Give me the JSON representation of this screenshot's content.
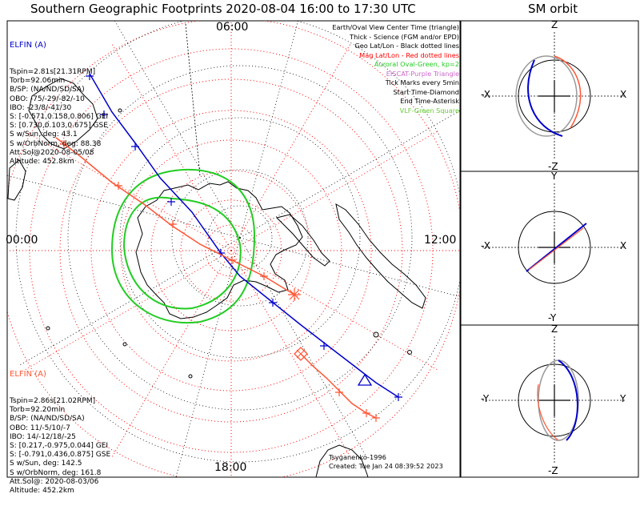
{
  "title": "Southern Geographic Footprints 2020-08-04 16:00 to 17:30 UTC",
  "orbit_title": "SM orbit",
  "map": {
    "mlt_top": "06:00",
    "mlt_left": "00:00",
    "mlt_right": "12:00",
    "mlt_bottom": "18:00",
    "lat_circles_deg": [
      -40,
      -50,
      -60,
      -70,
      -80,
      -90
    ],
    "lon_meridian_step_deg": 30,
    "auroral_oval_kp": 2
  },
  "elfin_a": {
    "label": "ELFIN (A)",
    "color": "#0000cc",
    "lines": [
      "Tspin=2.81s[21.31RPM]",
      "Torb=92.06min",
      "B/SP: (NA/ND/SD/SA)",
      "OBO: -75/-29/-82/-10",
      "IBO: -23/8/-41/30",
      "S: [-0.571,0.158,0.806] GEI",
      "S: [0.730,0.103,0.675] GSE",
      "S w/Sun, deg: 43.1",
      "S w/OrbNorm, deg: 88.38",
      "Att.Sol@2020-08-05/08",
      "Altitude: 452.8km"
    ]
  },
  "elfin_b": {
    "label": "ELFIN (A)",
    "color": "#ff5533",
    "lines": [
      "Tspin=2.86s[21.02RPM]",
      "Torb=92.20min",
      "B/SP: (NA/ND/SD/SA)",
      "OBO: 11/-5/10/-7",
      "IBO: 14/-12/18/-25",
      "S: [0.217,-0.975,0.044] GEI",
      "S: [-0.791,0.436,0.875] GSE",
      "S w/Sun, deg: 142.5",
      "S w/OrbNorm, deg: 161.8",
      "Att.Sol@: 2020-08-03/06",
      "Altitude: 452.2km"
    ]
  },
  "legend": [
    {
      "text": "Earth/Oval View Center Time (triangle)",
      "color": "#000000"
    },
    {
      "text": "Thick - Science (FGM and/or EPD)",
      "color": "#000000"
    },
    {
      "text": "Geo Lat/Lon - Black dotted lines",
      "color": "#000000"
    },
    {
      "text": "Mag Lat/Lon - Red dotted lines",
      "color": "#ff0000"
    },
    {
      "text": "Auroral Oval-Green, kp=2",
      "color": "#22cc22"
    },
    {
      "text": "EISCAT-Purple Triangle",
      "color": "#cc66cc"
    },
    {
      "text": "Tick Marks every 5min",
      "color": "#000000"
    },
    {
      "text": "Start Time-Diamond",
      "color": "#000000"
    },
    {
      "text": "End Time-Asterisk",
      "color": "#000000"
    },
    {
      "text": "VLF-Green Square",
      "color": "#66cc33"
    }
  ],
  "credit": {
    "author": "Tsyganenko-1996",
    "created": "Created: Tue Jan 24 08:39:52 2023"
  },
  "orbit_panels": [
    {
      "top": "Z",
      "bottom": "-Z",
      "left": "-X",
      "right": "X"
    },
    {
      "top": "Y",
      "bottom": "-Y",
      "left": "-X",
      "right": "X"
    },
    {
      "top": "Z",
      "bottom": "-Z",
      "left": "-Y",
      "right": "Y"
    }
  ],
  "colors": {
    "elfin_a": "#0000cc",
    "elfin_b": "#ff5533",
    "auroral_oval": "#22cc22",
    "mag_grid": "#ff0000",
    "geo_grid": "#000000",
    "orbit_gray": "#999999"
  }
}
